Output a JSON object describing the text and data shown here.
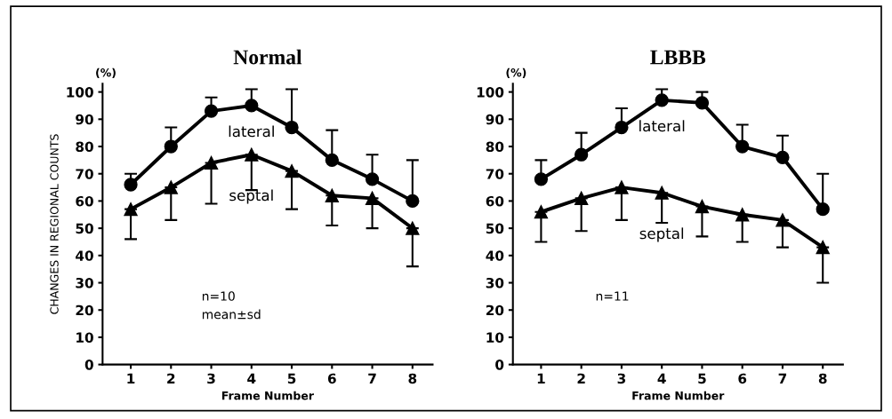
{
  "chart_data": [
    {
      "type": "line",
      "title": "Normal",
      "xlabel": "Frame Number",
      "ylabel": "CHANGES IN REGIONAL COUNTS",
      "x": [
        1,
        2,
        3,
        4,
        5,
        6,
        7,
        8
      ],
      "xlim": [
        0.3,
        8.5
      ],
      "xticks": [
        1,
        2,
        3,
        4,
        5,
        6,
        7,
        8
      ],
      "ylim": [
        0,
        103
      ],
      "yticks": [
        0,
        10,
        20,
        30,
        40,
        50,
        60,
        70,
        80,
        90,
        100
      ],
      "grid": false,
      "legend": false,
      "line_style": "solid",
      "annotations": [
        "(%)",
        "n=10",
        "mean±sd"
      ],
      "series": [
        {
          "name": "lateral",
          "color": "#000000",
          "marker": "circle",
          "values": [
            66,
            80,
            93,
            95,
            87,
            75,
            68,
            60
          ],
          "errors": [
            [
              66,
              70
            ],
            [
              80,
              87
            ],
            [
              93,
              98
            ],
            [
              95,
              101
            ],
            [
              87,
              101
            ],
            [
              75,
              86
            ],
            [
              68,
              77
            ],
            [
              60,
              75
            ]
          ]
        },
        {
          "name": "septal",
          "color": "#000000",
          "marker": "triangle",
          "values": [
            57,
            65,
            74,
            77,
            71,
            62,
            61,
            50
          ],
          "errors": [
            [
              46,
              57
            ],
            [
              53,
              65
            ],
            [
              59,
              74
            ],
            [
              64,
              77
            ],
            [
              57,
              71
            ],
            [
              51,
              62
            ],
            [
              50,
              61
            ],
            [
              36,
              50
            ]
          ]
        }
      ]
    },
    {
      "type": "line",
      "title": "LBBB",
      "xlabel": "Frame Number",
      "x": [
        1,
        2,
        3,
        4,
        5,
        6,
        7,
        8
      ],
      "xlim": [
        0.3,
        8.5
      ],
      "xticks": [
        1,
        2,
        3,
        4,
        5,
        6,
        7,
        8
      ],
      "ylim": [
        0,
        103
      ],
      "yticks": [
        0,
        10,
        20,
        30,
        40,
        50,
        60,
        70,
        80,
        90,
        100
      ],
      "grid": false,
      "legend": false,
      "line_style": "solid",
      "annotations": [
        "(%)",
        "n=11"
      ],
      "series": [
        {
          "name": "lateral",
          "color": "#000000",
          "marker": "circle",
          "values": [
            68,
            77,
            87,
            97,
            96,
            80,
            76,
            57
          ],
          "errors": [
            [
              68,
              75
            ],
            [
              77,
              85
            ],
            [
              87,
              94
            ],
            [
              97,
              101
            ],
            [
              96,
              100
            ],
            [
              80,
              88
            ],
            [
              76,
              84
            ],
            [
              57,
              70
            ]
          ]
        },
        {
          "name": "septal",
          "color": "#000000",
          "marker": "triangle",
          "values": [
            56,
            61,
            65,
            63,
            58,
            55,
            53,
            43
          ],
          "errors": [
            [
              45,
              56
            ],
            [
              49,
              61
            ],
            [
              53,
              65
            ],
            [
              52,
              63
            ],
            [
              47,
              58
            ],
            [
              45,
              55
            ],
            [
              43,
              53
            ],
            [
              30,
              43
            ]
          ]
        }
      ]
    }
  ]
}
